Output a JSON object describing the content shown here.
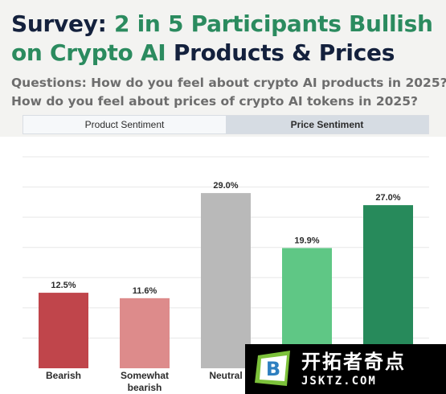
{
  "title": {
    "prefix": "Survey: ",
    "highlight": "2 in 5 Participants Bullish on Crypto AI",
    "suffix": " Products & Prices"
  },
  "questions": [
    "Questions: How do you feel about crypto AI products in 2025?",
    "How do you feel about prices of crypto AI tokens in 2025?"
  ],
  "tabs": [
    {
      "label": "Product Sentiment",
      "active": true
    },
    {
      "label": "Price Sentiment",
      "active": false
    }
  ],
  "chart_data": {
    "type": "bar",
    "categories": [
      "Bearish",
      "Somewhat bearish",
      "Neutral",
      "",
      ""
    ],
    "values": [
      12.5,
      11.6,
      29.0,
      19.9,
      27.0
    ],
    "value_labels": [
      "12.5%",
      "11.6%",
      "29.0%",
      "19.9%",
      "27.0%"
    ],
    "colors": [
      "#c0454b",
      "#dd8b8b",
      "#b9b9b9",
      "#5fc785",
      "#278a5b"
    ],
    "ylim": [
      0,
      37
    ],
    "grid": "horizontal"
  },
  "watermark": {
    "logo_letter": "B",
    "text": "开拓者奇点",
    "domain": "JSKTZ.COM"
  }
}
